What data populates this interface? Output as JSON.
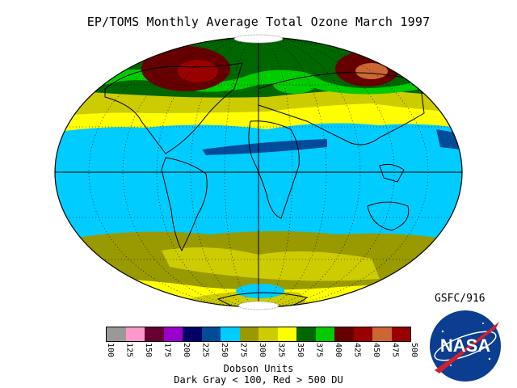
{
  "title": "EP/TOMS Monthly Average Total Ozone March 1997",
  "credit": "GSFC/916",
  "legend": {
    "ticks": [
      "100",
      "125",
      "150",
      "175",
      "200",
      "225",
      "250",
      "275",
      "300",
      "325",
      "350",
      "375",
      "400",
      "425",
      "450",
      "475",
      "500"
    ],
    "colors": [
      "#999999",
      "#ff99cc",
      "#660033",
      "#9900cc",
      "#000066",
      "#004c99",
      "#00ccff",
      "#999900",
      "#cccc00",
      "#ffff00",
      "#006600",
      "#00cc00",
      "#660000",
      "#990000",
      "#cc6633",
      "#990000"
    ],
    "units": "Dobson Units",
    "note": "Dark Gray < 100, Red > 500 DU"
  },
  "logo_text": "NASA"
}
